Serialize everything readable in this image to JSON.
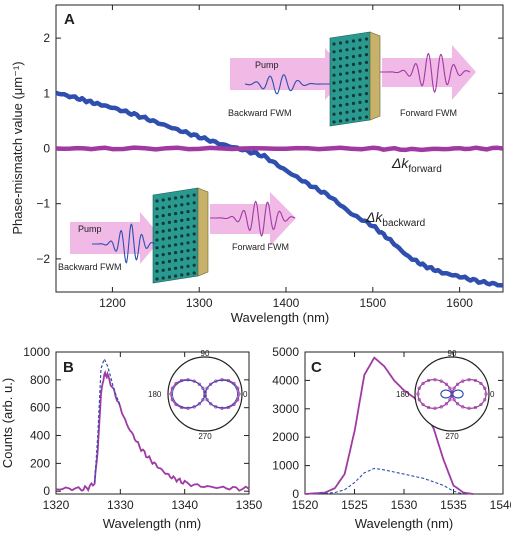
{
  "colors": {
    "backward": "#2f4fae",
    "forward": "#a03aa3",
    "pink": "#f0b9e6",
    "axis": "#222222"
  },
  "icons": [
    "metamaterial-slab-icon",
    "pump-arrow-icon",
    "wave-packet-icon"
  ],
  "chart_data": [
    {
      "panel": "A",
      "type": "line",
      "xlabel": "Wavelength (nm)",
      "ylabel": "Phase-mismatch value (μm⁻¹)",
      "xlim": [
        1135,
        1650
      ],
      "ylim": [
        -2.6,
        2.6
      ],
      "xticks": [
        1200,
        1300,
        1400,
        1500,
        1600
      ],
      "yticks": [
        -2,
        -1,
        0,
        1,
        2
      ],
      "ytick_labels": [
        "−2",
        "−1",
        "0",
        "1",
        "2"
      ],
      "series": [
        {
          "key": "backward",
          "x": [
            1135,
            1160,
            1180,
            1200,
            1225,
            1250,
            1275,
            1300,
            1325,
            1350,
            1375,
            1400,
            1425,
            1450,
            1475,
            1500,
            1520,
            1540,
            1560,
            1580,
            1600,
            1625,
            1650
          ],
          "y": [
            1.01,
            0.91,
            0.82,
            0.74,
            0.62,
            0.48,
            0.34,
            0.21,
            0.08,
            -0.02,
            -0.14,
            -0.4,
            -0.64,
            -0.86,
            -1.18,
            -1.4,
            -1.66,
            -1.95,
            -2.13,
            -2.25,
            -2.32,
            -2.42,
            -2.48
          ]
        },
        {
          "key": "forward",
          "x": [
            1135,
            1200,
            1300,
            1400,
            1500,
            1550,
            1600,
            1650
          ],
          "y": [
            0.0,
            0.0,
            0.0,
            0.0,
            0.0,
            -0.02,
            0.0,
            0.0
          ]
        }
      ],
      "annotations": {
        "backward_label": "Δk",
        "backward_sub": "backward",
        "forward_label": "Δk",
        "forward_sub": "forward",
        "pump": "Pump",
        "backward_fwm": "Backward FWM",
        "forward_fwm": "Forward FWM"
      }
    },
    {
      "panel": "B",
      "type": "line",
      "xlabel": "Wavelength (nm)",
      "ylabel": "Counts (arb. u.)",
      "xlim": [
        1320,
        1350
      ],
      "ylim": [
        -20,
        1000
      ],
      "xticks": [
        1320,
        1330,
        1340,
        1350
      ],
      "yticks": [
        0,
        200,
        400,
        600,
        800,
        1000
      ],
      "series": [
        {
          "key": "forward-solid",
          "x": [
            1320,
            1322,
            1324,
            1325,
            1326,
            1326.5,
            1327,
            1327.5,
            1328,
            1329,
            1330,
            1331,
            1332,
            1333,
            1334,
            1335,
            1336,
            1337,
            1338,
            1339,
            1340,
            1342,
            1344,
            1346,
            1348,
            1350
          ],
          "y": [
            15,
            20,
            15,
            25,
            60,
            300,
            700,
            840,
            830,
            720,
            600,
            480,
            400,
            320,
            260,
            210,
            170,
            130,
            100,
            80,
            60,
            40,
            30,
            25,
            20,
            15
          ]
        },
        {
          "key": "backward-dashed",
          "x": [
            1326,
            1326.5,
            1327,
            1327.5,
            1328,
            1328.5,
            1329,
            1330
          ],
          "y": [
            60,
            400,
            880,
            950,
            900,
            820,
            730,
            610
          ]
        }
      ],
      "polar_labels": [
        "90",
        "180",
        "0",
        "270"
      ]
    },
    {
      "panel": "C",
      "type": "line",
      "xlabel": "Wavelength (nm)",
      "ylabel": "",
      "xlim": [
        1520,
        1540
      ],
      "ylim": [
        0,
        5000
      ],
      "xticks": [
        1520,
        1525,
        1530,
        1535,
        1540
      ],
      "yticks": [
        0,
        1000,
        2000,
        3000,
        4000,
        5000
      ],
      "series": [
        {
          "key": "forward-solid",
          "x": [
            1520,
            1522,
            1523,
            1524,
            1525,
            1526,
            1527,
            1528,
            1529,
            1530,
            1531,
            1532,
            1533,
            1534,
            1535,
            1536,
            1537
          ],
          "y": [
            0,
            50,
            200,
            700,
            2200,
            4200,
            4800,
            4500,
            4000,
            3650,
            3400,
            3000,
            2300,
            1200,
            300,
            50,
            0
          ]
        },
        {
          "key": "backward-dashed",
          "x": [
            1521,
            1523,
            1524,
            1525,
            1526,
            1527,
            1528,
            1530,
            1532,
            1534,
            1535,
            1536
          ],
          "y": [
            0,
            50,
            150,
            400,
            750,
            900,
            850,
            700,
            550,
            300,
            100,
            0
          ]
        }
      ],
      "polar_labels": [
        "90",
        "180",
        "0",
        "270"
      ]
    }
  ]
}
